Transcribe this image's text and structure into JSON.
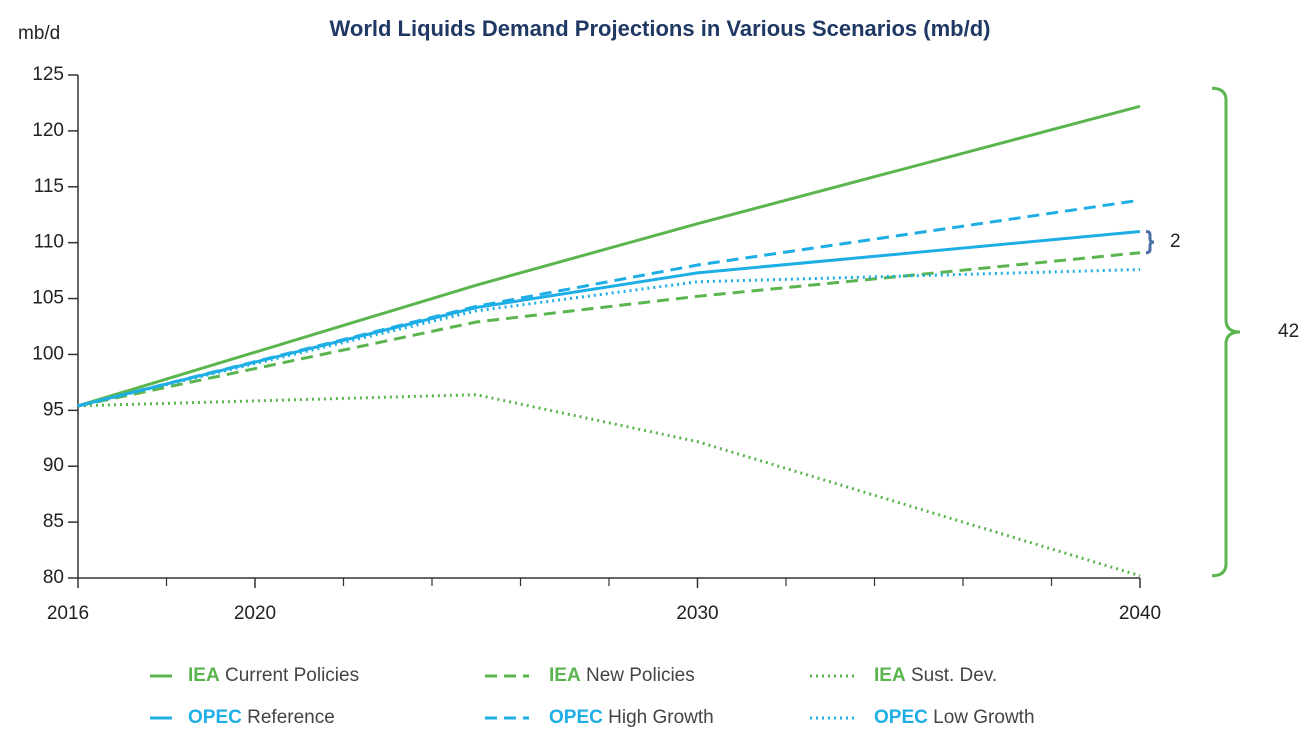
{
  "chart_data": {
    "type": "line",
    "title": "World Liquids Demand Projections in Various Scenarios (mb/d)",
    "y_label": "mb/d",
    "x": [
      2016,
      2025,
      2030,
      2040
    ],
    "xlim": [
      2016,
      2040
    ],
    "xticks": [
      2016,
      2020,
      2030,
      2040
    ],
    "xminor_ticks": [
      2018,
      2022,
      2024,
      2026,
      2028,
      2032,
      2034,
      2036,
      2038
    ],
    "ylim": [
      80,
      125
    ],
    "yticks": [
      80,
      85,
      90,
      95,
      100,
      105,
      110,
      115,
      120,
      125
    ],
    "series": [
      {
        "group": "IEA",
        "name": "Current Policies",
        "color": "#5bb54f",
        "dash": "solid",
        "values": [
          95.4,
          106.2,
          111.7,
          122.2
        ]
      },
      {
        "group": "IEA",
        "name": "New Policies",
        "color": "#5bb54f",
        "dash": "dashed",
        "values": [
          95.4,
          102.9,
          105.2,
          109.1
        ]
      },
      {
        "group": "IEA",
        "name": "Sust. Dev.",
        "color": "#5bb54f",
        "dash": "dotted",
        "values": [
          95.4,
          96.4,
          92.2,
          80.2
        ]
      },
      {
        "group": "OPEC",
        "name": "Reference",
        "color": "#1eaee6",
        "dash": "solid",
        "values": [
          95.4,
          104.2,
          107.3,
          111.0
        ]
      },
      {
        "group": "OPEC",
        "name": "High Growth",
        "color": "#1eaee6",
        "dash": "dashed",
        "values": [
          95.4,
          104.3,
          108.0,
          113.8
        ]
      },
      {
        "group": "OPEC",
        "name": "Low Growth",
        "color": "#1eaee6",
        "dash": "dotted",
        "values": [
          95.4,
          103.9,
          106.5,
          107.6
        ]
      }
    ],
    "annotations": [
      {
        "text": "2",
        "color": "#4a6fa5",
        "from_series": 3,
        "to_series": 1
      },
      {
        "text": "42",
        "color": "#5bb54f",
        "from_series": 0,
        "to_series": 2
      }
    ]
  }
}
